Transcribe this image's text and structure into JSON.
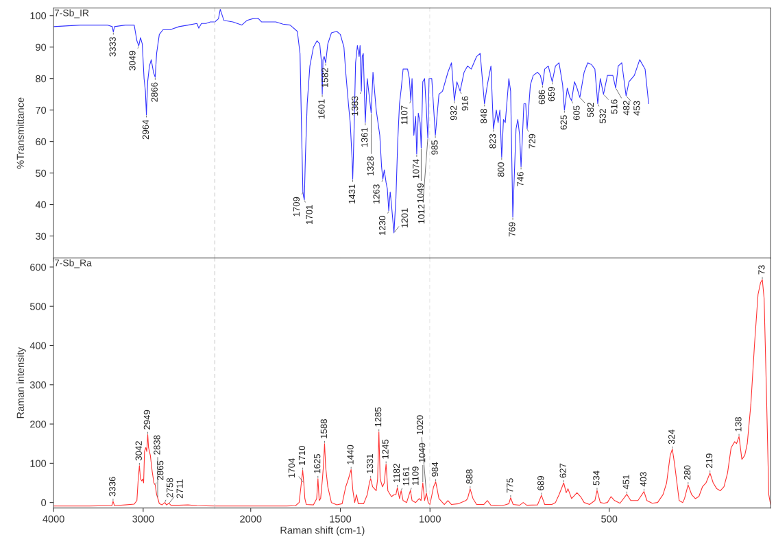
{
  "chart_data": [
    {
      "type": "line",
      "ylabel": "%Transmittance",
      "xlim": [
        4000,
        2200
      ],
      "xticks": [
        4000,
        3000
      ],
      "tick_labels": "y",
      "ylim": [
        23,
        102.4
      ],
      "yticks": [
        30,
        40,
        50,
        60,
        70,
        80,
        90,
        100
      ],
      "series": [
        {
          "color": "#3333ff",
          "x": [
            4000,
            3700,
            3400,
            3345,
            3333,
            3320,
            3200,
            3100,
            3070,
            3049,
            3030,
            3010,
            2990,
            2975,
            2964,
            2950,
            2930,
            2910,
            2885,
            2866,
            2850,
            2820,
            2780,
            2700,
            2600,
            2500,
            2400,
            2380,
            2350,
            2300,
            2250,
            2200
          ],
          "values": [
            96.5,
            97,
            97,
            96.5,
            94.8,
            96.5,
            97,
            97,
            92,
            90.4,
            93,
            91,
            80,
            76,
            68.5,
            79,
            84,
            86,
            82,
            80.4,
            88,
            94,
            95.5,
            95.5,
            96.5,
            97,
            97.5,
            96,
            97.5,
            97.5,
            98,
            98
          ]
        }
      ],
      "annotations": [
        "7-Sb_IR",
        {
          "text": "3333",
          "x": 3333,
          "y": 94.8
        },
        {
          "text": "3049",
          "x": 3049,
          "y": 90.4
        },
        {
          "text": "2964",
          "x": 2964,
          "y": 68.5
        },
        {
          "text": "2866",
          "x": 2866,
          "y": 80.4
        }
      ]
    },
    {
      "type": "line",
      "xlim": [
        2200,
        1000
      ],
      "xticks": [
        2000,
        1500
      ],
      "tick_labels": false,
      "ylim": [
        23,
        102.4
      ],
      "ref_lines": [
        {
          "axis": "x",
          "value": 2200,
          "color": "#c8c8c8",
          "line_style": "dashed"
        },
        {
          "axis": "x",
          "value": 1000,
          "color": "#c8c8c8",
          "line_style": "dashed"
        }
      ],
      "series": [
        {
          "color": "#3333ff",
          "x": [
            2200,
            2180,
            2170,
            2150,
            2100,
            2050,
            2020,
            1990,
            1960,
            1940,
            1900,
            1860,
            1820,
            1780,
            1740,
            1725,
            1715,
            1709,
            1705,
            1701,
            1695,
            1685,
            1670,
            1650,
            1630,
            1615,
            1605,
            1601,
            1597,
            1590,
            1582,
            1570,
            1550,
            1520,
            1500,
            1480,
            1470,
            1455,
            1445,
            1435,
            1431,
            1425,
            1415,
            1405,
            1395,
            1390,
            1383,
            1378,
            1372,
            1361,
            1350,
            1338,
            1328,
            1318,
            1300,
            1280,
            1270,
            1263,
            1255,
            1245,
            1238,
            1230,
            1222,
            1215,
            1201,
            1190,
            1180,
            1170,
            1160,
            1150,
            1125,
            1115,
            1107,
            1100,
            1090,
            1080,
            1074,
            1065,
            1055,
            1049,
            1040,
            1030,
            1020,
            1012,
            1005,
            1000
          ],
          "values": [
            98,
            99,
            102,
            98.5,
            98,
            97,
            98.5,
            99,
            99.2,
            98,
            98,
            98,
            97.3,
            97,
            95,
            88,
            60,
            44,
            42.5,
            41.5,
            55,
            72,
            84,
            90,
            92,
            91,
            85,
            75,
            86,
            87,
            85,
            91,
            94.5,
            95,
            94,
            90,
            82,
            72,
            66,
            55,
            48,
            60,
            85,
            90.5,
            87,
            90.5,
            76,
            87,
            88,
            66,
            80,
            74,
            69,
            82,
            70,
            62,
            52,
            48,
            51,
            47,
            45,
            38,
            44,
            40,
            31,
            42,
            60,
            72,
            77,
            83,
            83,
            80,
            73,
            80,
            62,
            68,
            56,
            69,
            66,
            58,
            79,
            80,
            70,
            61,
            80,
            80
          ]
        }
      ],
      "annotations": [
        {
          "text": "1709",
          "x": 1709,
          "y": 44
        },
        {
          "text": "1701",
          "x": 1701,
          "y": 41.5
        },
        {
          "text": "1601",
          "x": 1601,
          "y": 75
        },
        {
          "text": "1582",
          "x": 1582,
          "y": 85
        },
        {
          "text": "1431",
          "x": 1431,
          "y": 48
        },
        {
          "text": "1383",
          "x": 1383,
          "y": 76
        },
        {
          "text": "1361",
          "x": 1361,
          "y": 66
        },
        {
          "text": "1328",
          "x": 1328,
          "y": 69
        },
        {
          "text": "1263",
          "x": 1263,
          "y": 48
        },
        {
          "text": "1230",
          "x": 1230,
          "y": 38
        },
        {
          "text": "1201",
          "x": 1201,
          "y": 31
        },
        {
          "text": "1107",
          "x": 1107,
          "y": 73
        },
        {
          "text": "1074",
          "x": 1074,
          "y": 56
        },
        {
          "text": "1049",
          "x": 1049,
          "y": 58
        },
        {
          "text": "1012",
          "x": 1012,
          "y": 61
        }
      ]
    },
    {
      "type": "line",
      "xlim": [
        1000,
        50
      ],
      "xticks": [
        1000,
        500
      ],
      "tick_labels": false,
      "ylim": [
        23,
        102.4
      ],
      "series": [
        {
          "color": "#3333ff",
          "x": [
            1000,
            995,
            985,
            975,
            965,
            950,
            940,
            932,
            925,
            916,
            905,
            895,
            885,
            870,
            860,
            848,
            840,
            830,
            823,
            815,
            810,
            805,
            800,
            795,
            790,
            780,
            775,
            769,
            760,
            755,
            750,
            746,
            738,
            733,
            729,
            720,
            712,
            700,
            692,
            686,
            680,
            670,
            659,
            650,
            640,
            630,
            625,
            617,
            610,
            605,
            597,
            590,
            582,
            570,
            560,
            550,
            540,
            532,
            525,
            516,
            505,
            490,
            482,
            475,
            465,
            453,
            445,
            430,
            415,
            400,
            390
          ],
          "values": [
            80,
            80,
            62,
            75,
            76,
            82,
            85,
            73,
            79,
            76,
            82,
            84,
            83,
            87,
            88,
            72,
            78,
            84,
            64,
            70,
            66,
            70,
            55,
            67,
            66,
            80,
            76,
            36,
            64,
            67,
            62,
            52,
            72,
            72,
            64,
            78,
            81,
            82,
            81,
            78,
            83,
            84,
            79,
            84,
            85,
            78,
            70,
            77,
            74,
            73,
            79,
            77,
            74,
            82,
            85,
            84.5,
            83,
            72,
            80,
            75,
            81,
            81,
            77,
            84,
            85,
            74.5,
            79,
            81,
            86,
            83,
            72
          ]
        }
      ],
      "annotations": [
        {
          "text": "985",
          "x": 985,
          "y": 62
        },
        {
          "text": "932",
          "x": 932,
          "y": 73
        },
        {
          "text": "916",
          "x": 916,
          "y": 76
        },
        {
          "text": "848",
          "x": 848,
          "y": 72
        },
        {
          "text": "823",
          "x": 823,
          "y": 64
        },
        {
          "text": "800",
          "x": 800,
          "y": 55
        },
        {
          "text": "769",
          "x": 769,
          "y": 36
        },
        {
          "text": "746",
          "x": 746,
          "y": 52
        },
        {
          "text": "729",
          "x": 729,
          "y": 64
        },
        {
          "text": "686",
          "x": 686,
          "y": 78
        },
        {
          "text": "659",
          "x": 659,
          "y": 79
        },
        {
          "text": "625",
          "x": 625,
          "y": 70
        },
        {
          "text": "605",
          "x": 605,
          "y": 73
        },
        {
          "text": "582",
          "x": 582,
          "y": 74
        },
        {
          "text": "532",
          "x": 532,
          "y": 72
        },
        {
          "text": "516",
          "x": 516,
          "y": 75
        },
        {
          "text": "482",
          "x": 482,
          "y": 77
        },
        {
          "text": "453",
          "x": 453,
          "y": 74.5
        }
      ]
    },
    {
      "type": "line",
      "ylabel": "Raman intensity",
      "xlim": [
        4000,
        2200
      ],
      "xticks": [
        4000,
        3000
      ],
      "ylim": [
        -14,
        623
      ],
      "yticks": [
        0,
        100,
        200,
        300,
        400,
        500,
        600
      ],
      "series": [
        {
          "color": "#ff3333",
          "x": [
            4000,
            3600,
            3400,
            3350,
            3336,
            3320,
            3200,
            3100,
            3070,
            3055,
            3042,
            3030,
            3015,
            3005,
            2995,
            2985,
            2970,
            2960,
            2949,
            2940,
            2920,
            2900,
            2880,
            2865,
            2850,
            2838,
            2820,
            2790,
            2758,
            2740,
            2711,
            2690,
            2600,
            2500,
            2400,
            2200
          ],
          "values": [
            -9,
            -9,
            -8,
            -8,
            3,
            -8,
            -6,
            -4,
            5,
            60,
            94,
            60,
            55,
            60,
            50,
            130,
            140,
            130,
            173,
            140,
            120,
            80,
            50,
            44,
            20,
            12,
            -3,
            -6,
            0,
            -6,
            -2,
            -7,
            -7,
            -6,
            -8,
            -9
          ]
        }
      ],
      "annotations": [
        "7-Sb_Ra",
        {
          "text": "3336",
          "x": 3336,
          "y": 3
        },
        {
          "text": "3042",
          "x": 3042,
          "y": 94
        },
        {
          "text": "2949",
          "x": 2949,
          "y": 173
        },
        {
          "text": "2865",
          "x": 2865,
          "y": 44
        },
        {
          "text": "2838",
          "x": 2838,
          "y": 12
        },
        {
          "text": "2758",
          "x": 2758,
          "y": 0
        },
        {
          "text": "2711",
          "x": 2711,
          "y": -2
        }
      ]
    },
    {
      "type": "line",
      "xlabel": "Raman shift (cm-1)",
      "xlim": [
        2200,
        1000
      ],
      "xticks": [
        2000,
        1500
      ],
      "tick_labels": "x",
      "ylim": [
        -14,
        623
      ],
      "ref_lines": [
        {
          "axis": "x",
          "value": 2200,
          "color": "#c8c8c8",
          "line_style": "dashed"
        },
        {
          "axis": "x",
          "value": 1000,
          "color": "#c8c8c8",
          "line_style": "dashed"
        }
      ],
      "series": [
        {
          "color": "#ff3333",
          "x": [
            2200,
            2000,
            1800,
            1750,
            1730,
            1720,
            1710,
            1704,
            1698,
            1690,
            1650,
            1632,
            1625,
            1618,
            1610,
            1600,
            1595,
            1588,
            1582,
            1570,
            1550,
            1520,
            1490,
            1470,
            1455,
            1440,
            1430,
            1420,
            1410,
            1400,
            1370,
            1350,
            1338,
            1331,
            1320,
            1300,
            1292,
            1285,
            1278,
            1265,
            1255,
            1245,
            1235,
            1215,
            1200,
            1190,
            1182,
            1170,
            1161,
            1150,
            1130,
            1120,
            1109,
            1100,
            1080,
            1060,
            1050,
            1040,
            1030,
            1020,
            1010,
            1000
          ],
          "values": [
            -9,
            -9,
            -9,
            -8,
            0,
            40,
            82,
            50,
            10,
            -5,
            -6,
            10,
            61,
            5,
            10,
            60,
            90,
            150,
            90,
            40,
            0,
            -6,
            -3,
            40,
            60,
            84,
            30,
            0,
            20,
            -3,
            -3,
            20,
            50,
            61,
            40,
            30,
            60,
            180,
            60,
            40,
            50,
            98,
            30,
            15,
            20,
            20,
            38,
            10,
            30,
            5,
            0,
            15,
            31,
            5,
            0,
            10,
            5,
            50,
            5,
            24,
            0,
            -5
          ]
        }
      ],
      "annotations": [
        {
          "text": "1710",
          "x": 1710,
          "y": 82
        },
        {
          "text": "1704",
          "x": 1704,
          "y": 50
        },
        {
          "text": "1625",
          "x": 1625,
          "y": 61
        },
        {
          "text": "1588",
          "x": 1588,
          "y": 150
        },
        {
          "text": "1440",
          "x": 1440,
          "y": 84
        },
        {
          "text": "1331",
          "x": 1331,
          "y": 61
        },
        {
          "text": "1285",
          "x": 1285,
          "y": 180
        },
        {
          "text": "1245",
          "x": 1245,
          "y": 98
        },
        {
          "text": "1182",
          "x": 1182,
          "y": 38
        },
        {
          "text": "1161",
          "x": 1161,
          "y": 30
        },
        {
          "text": "1109",
          "x": 1109,
          "y": 31
        },
        {
          "text": "1040",
          "x": 1040,
          "y": 50
        },
        {
          "text": "1020",
          "x": 1020,
          "y": 24
        }
      ]
    },
    {
      "type": "line",
      "xlim": [
        1000,
        50
      ],
      "xticks": [
        1000,
        500
      ],
      "tick_labels": "x",
      "ylim": [
        -14,
        623
      ],
      "series": [
        {
          "color": "#ff3333",
          "x": [
            1000,
            990,
            984,
            975,
            960,
            950,
            940,
            920,
            900,
            895,
            888,
            880,
            870,
            850,
            840,
            830,
            800,
            790,
            780,
            775,
            768,
            750,
            740,
            730,
            700,
            695,
            689,
            680,
            660,
            650,
            640,
            627,
            620,
            615,
            605,
            590,
            580,
            570,
            555,
            540,
            534,
            525,
            515,
            505,
            495,
            485,
            470,
            451,
            440,
            420,
            403,
            395,
            380,
            365,
            350,
            340,
            330,
            324,
            318,
            305,
            295,
            290,
            280,
            270,
            260,
            250,
            240,
            230,
            219,
            210,
            200,
            190,
            180,
            170,
            160,
            150,
            145,
            138,
            130,
            122,
            115,
            105,
            95,
            85,
            78,
            73,
            68,
            62,
            55,
            50
          ],
          "values": [
            -5,
            40,
            53,
            10,
            -5,
            5,
            -5,
            -3,
            5,
            10,
            35,
            10,
            -5,
            -5,
            5,
            -7,
            -8,
            -6,
            -3,
            12,
            -5,
            -7,
            0,
            -7,
            -6,
            5,
            18,
            -5,
            -5,
            0,
            20,
            50,
            25,
            35,
            10,
            25,
            15,
            0,
            -5,
            5,
            31,
            0,
            -2,
            0,
            15,
            5,
            -2,
            21,
            5,
            5,
            28,
            5,
            -2,
            0,
            20,
            50,
            120,
            136,
            100,
            5,
            0,
            10,
            45,
            20,
            10,
            15,
            40,
            50,
            75,
            50,
            35,
            30,
            40,
            75,
            140,
            155,
            150,
            168,
            110,
            120,
            150,
            250,
            400,
            530,
            560,
            568,
            520,
            300,
            20,
            -5
          ]
        }
      ],
      "annotations": [
        {
          "text": "984",
          "x": 984,
          "y": 53
        },
        {
          "text": "888",
          "x": 888,
          "y": 35
        },
        {
          "text": "775",
          "x": 775,
          "y": 12
        },
        {
          "text": "689",
          "x": 689,
          "y": 18
        },
        {
          "text": "627",
          "x": 627,
          "y": 50
        },
        {
          "text": "534",
          "x": 534,
          "y": 31
        },
        {
          "text": "451",
          "x": 451,
          "y": 21
        },
        {
          "text": "403",
          "x": 403,
          "y": 28
        },
        {
          "text": "324",
          "x": 324,
          "y": 136
        },
        {
          "text": "280",
          "x": 280,
          "y": 45
        },
        {
          "text": "219",
          "x": 219,
          "y": 75
        },
        {
          "text": "138",
          "x": 138,
          "y": 168
        },
        {
          "text": "73",
          "x": 73,
          "y": 568
        }
      ]
    }
  ]
}
